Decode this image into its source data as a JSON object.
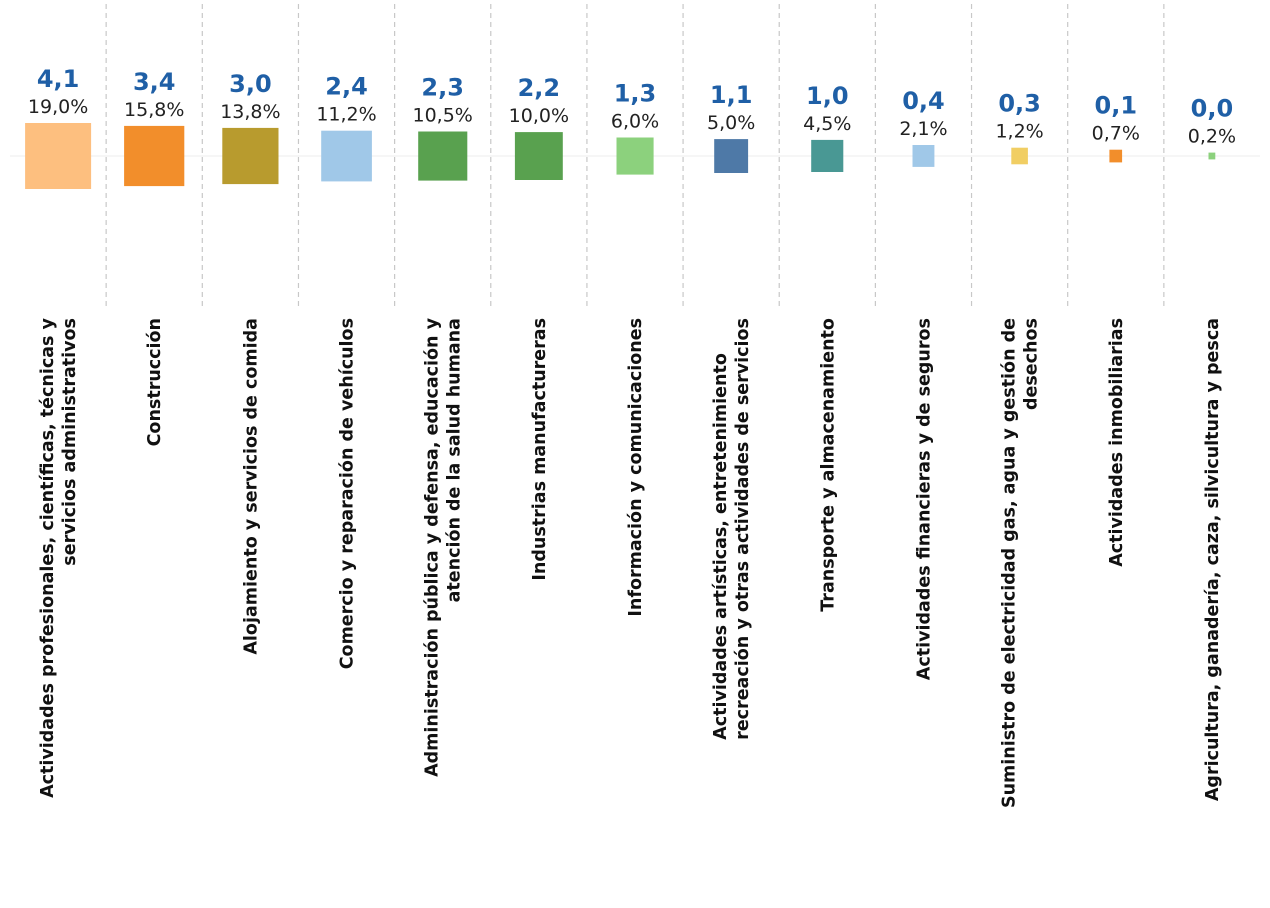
{
  "chart_data": {
    "type": "bar",
    "title": "",
    "xlabel": "",
    "ylabel": "",
    "grid": false,
    "categories": [
      [
        "Actividades profesionales, científicas, técnicas y",
        "servicios administrativos"
      ],
      [
        "Construcción"
      ],
      [
        "Alojamiento y servicios de comida"
      ],
      [
        "Comercio y reparación de vehículos"
      ],
      [
        "Administración pública y defensa, educación y",
        "atención de la salud humana"
      ],
      [
        "Industrias manufactureras"
      ],
      [
        "Información y comunicaciones"
      ],
      [
        "Actividades artísticas, entretenimiento",
        "recreación y otras actividades de servicios"
      ],
      [
        "Transporte y almacenamiento"
      ],
      [
        "Actividades financieras y de seguros"
      ],
      [
        "Suministro de electricidad gas, agua y gestión de",
        "desechos"
      ],
      [
        "Actividades inmobiliarias"
      ],
      [
        "Agricultura, ganadería, caza, silvicultura y pesca"
      ]
    ],
    "values": [
      4.1,
      3.4,
      3.0,
      2.4,
      2.3,
      2.2,
      1.3,
      1.1,
      1.0,
      0.4,
      0.3,
      0.1,
      0.0
    ],
    "value_labels": [
      "4,1",
      "3,4",
      "3,0",
      "2,4",
      "2,3",
      "2,2",
      "1,3",
      "1,1",
      "1,0",
      "0,4",
      "0,3",
      "0,1",
      "0,0"
    ],
    "shares": [
      19.0,
      15.8,
      13.8,
      11.2,
      10.5,
      10.0,
      6.0,
      5.0,
      4.5,
      2.1,
      1.2,
      0.7,
      0.2
    ],
    "share_labels": [
      "19,0%",
      "15,8%",
      "13,8%",
      "11,2%",
      "10,5%",
      "10,0%",
      "6,0%",
      "5,0%",
      "4,5%",
      "2,1%",
      "1,2%",
      "0,7%",
      "0,2%"
    ],
    "colors": [
      "#fdbf7f",
      "#f28e2b",
      "#b89b2e",
      "#a0c8e8",
      "#59a14f",
      "#59a14f",
      "#8cd17d",
      "#4e79a7",
      "#499894",
      "#a0c8e8",
      "#f1ce63",
      "#f28e2b",
      "#8cd17d"
    ]
  }
}
